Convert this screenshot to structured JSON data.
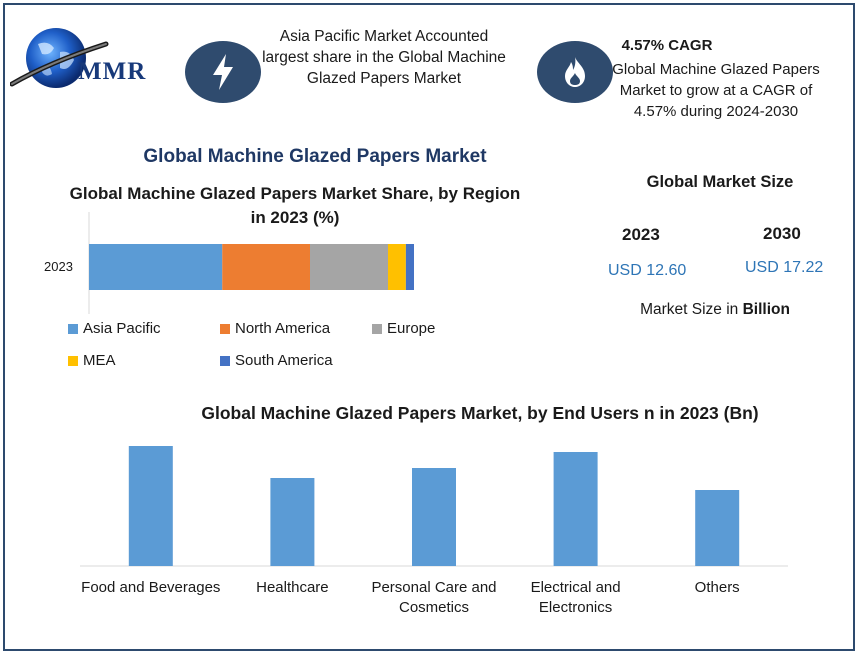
{
  "logo": {
    "text": "MMR"
  },
  "header": {
    "left_info": "Asia Pacific Market Accounted largest share in the Global Machine Glazed Papers Market",
    "cagr_title": "4.57% CAGR",
    "cagr_text": "Global Machine Glazed Papers Market to grow at a CAGR of 4.57% during 2024-2030",
    "left_icon": "lightning-bolt-icon",
    "right_icon": "flame-icon"
  },
  "main_title": "Global Machine Glazed Papers Market",
  "market_size": {
    "title": "Global Market Size",
    "year1": "2023",
    "value1": "USD 12.60",
    "year2": "2030",
    "value2": "USD 17.22",
    "note_prefix": "Market Size in ",
    "note_bold": "Billion"
  },
  "colors": {
    "frame": "#2d4a6e",
    "icon_circle": "#2f4b6e",
    "asia_pacific": "#5b9bd5",
    "north_america": "#ed7d31",
    "europe": "#a5a5a5",
    "mea": "#ffc000",
    "south_america": "#4472c4",
    "end_user_bar": "#5b9bd5"
  },
  "chart_data": [
    {
      "type": "bar",
      "orientation": "horizontal-stacked",
      "title": "Global Machine Glazed Papers Market Share, by Region in 2023 (%)",
      "categories": [
        "2023"
      ],
      "series": [
        {
          "name": "Asia Pacific",
          "values": [
            41
          ]
        },
        {
          "name": "North America",
          "values": [
            27
          ]
        },
        {
          "name": "Europe",
          "values": [
            24
          ]
        },
        {
          "name": "MEA",
          "values": [
            5.5
          ]
        },
        {
          "name": "South America",
          "values": [
            2.5
          ]
        }
      ],
      "legend_position": "bottom",
      "grid": false
    },
    {
      "type": "bar",
      "title": "Global Machine Glazed Papers Market, by End Users n in 2023 (Bn)",
      "categories": [
        "Food and Beverages",
        "Healthcare",
        "Personal Care and Cosmetics",
        "Electrical and Electronics",
        "Others"
      ],
      "category_lines": [
        [
          "Food and Beverages"
        ],
        [
          "Healthcare"
        ],
        [
          "Personal Care and",
          "Cosmetics"
        ],
        [
          "Electrical and",
          "Electronics"
        ],
        [
          "Others"
        ]
      ],
      "values": [
        3.0,
        2.2,
        2.45,
        2.85,
        1.9
      ],
      "ylim": [
        0,
        3.2
      ],
      "grid": false
    }
  ]
}
